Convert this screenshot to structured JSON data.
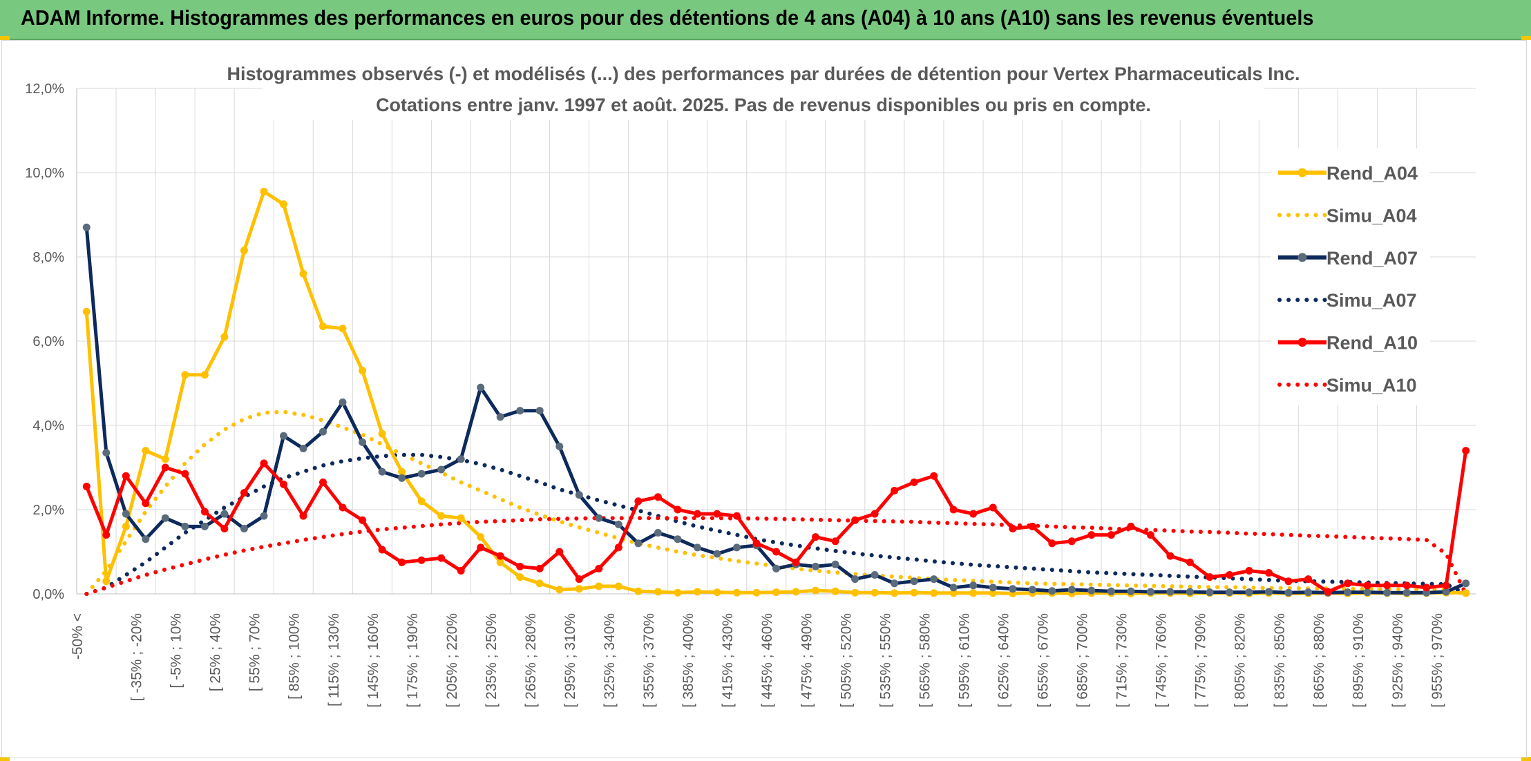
{
  "banner": {
    "title": "ADAM Informe. Histogrammes des performances en euros pour des détentions de 4 ans (A04) à 10 ans (A10) sans les revenus éventuels"
  },
  "colors": {
    "banner_bg": "#79c880",
    "a04": "#FFC000",
    "a07": "#0E2A5C",
    "a10": "#FF0000",
    "marker_a07": "#5a6b7c"
  },
  "chart_data": {
    "type": "line",
    "title": [
      "Histogrammes observés (-) et modélisés (...) des performances par durées de détention pour Vertex Pharmaceuticals Inc.",
      "Cotations entre janv. 1997 et août. 2025. Pas de revenus disponibles ou pris en compte."
    ],
    "xlabel": "",
    "ylabel": "",
    "ylim": [
      0,
      12
    ],
    "yticks": [
      "0,0%",
      "2,0%",
      "4,0%",
      "6,0%",
      "8,0%",
      "10,0%",
      "12,0%"
    ],
    "grid": true,
    "legend_position": "right",
    "x_tick_labels": [
      "-50% <",
      "[ -35% ; -20%",
      "[ -5% ; 10%",
      "[ 25% ; 40%",
      "[ 55% ; 70%",
      "[ 85% ; 100%",
      "[ 115% ; 130%",
      "[ 145% ; 160%",
      "[ 175% ; 190%",
      "[ 205% ; 220%",
      "[ 235% ; 250%",
      "[ 265% ; 280%",
      "[ 295% ; 310%",
      "[ 325% ; 340%",
      "[ 355% ; 370%",
      "[ 385% ; 400%",
      "[ 415% ; 430%",
      "[ 445% ; 460%",
      "[ 475% ; 490%",
      "[ 505% ; 520%",
      "[ 535% ; 550%",
      "[ 565% ; 580%",
      "[ 595% ; 610%",
      "[ 625% ; 640%",
      "[ 655% ; 670%",
      "[ 685% ; 700%",
      "[ 715% ; 730%",
      "[ 745% ; 760%",
      "[ 775% ; 790%",
      "[ 805% ; 820%",
      "[ 835% ; 850%",
      "[ 865% ; 880%",
      "[ 895% ; 910%",
      "[ 925% ; 940%",
      "[ 955% ; 970%"
    ],
    "series": [
      {
        "name": "Rend_A04",
        "style": "solid",
        "color": "#FFC000",
        "marker_color": "#FFC000",
        "values": [
          6.7,
          0.3,
          1.6,
          3.4,
          3.2,
          5.2,
          5.2,
          6.1,
          8.15,
          9.55,
          9.25,
          7.6,
          6.35,
          6.3,
          5.3,
          3.8,
          2.9,
          2.2,
          1.85,
          1.8,
          1.35,
          0.75,
          0.4,
          0.25,
          0.1,
          0.12,
          0.18,
          0.18,
          0.06,
          0.05,
          0.03,
          0.05,
          0.04,
          0.03,
          0.03,
          0.04,
          0.05,
          0.08,
          0.06,
          0.03,
          0.03,
          0.02,
          0.03,
          0.02,
          0.02,
          0.02,
          0.02,
          0.01,
          0.02,
          0.02,
          0.01,
          0.02,
          0.02,
          0.01,
          0.02,
          0.02,
          0.01,
          0.02,
          0.02,
          0.01,
          0.02,
          0.01,
          0.01,
          0.02,
          0.01,
          0.02,
          0.02,
          0.01,
          0.02,
          0.03,
          0.02
        ]
      },
      {
        "name": "Simu_A04",
        "style": "dotted",
        "color": "#FFC000",
        "values": [
          0.0,
          0.55,
          1.25,
          1.95,
          2.55,
          3.1,
          3.55,
          3.9,
          4.15,
          4.3,
          4.32,
          4.25,
          4.12,
          3.95,
          3.78,
          3.55,
          3.32,
          3.1,
          2.88,
          2.65,
          2.45,
          2.25,
          2.05,
          1.88,
          1.72,
          1.58,
          1.45,
          1.32,
          1.2,
          1.1,
          1.0,
          0.92,
          0.85,
          0.78,
          0.72,
          0.66,
          0.6,
          0.55,
          0.51,
          0.47,
          0.44,
          0.41,
          0.38,
          0.35,
          0.33,
          0.31,
          0.29,
          0.27,
          0.25,
          0.24,
          0.23,
          0.22,
          0.21,
          0.2,
          0.19,
          0.18,
          0.17,
          0.16,
          0.16,
          0.15,
          0.14,
          0.14,
          0.13,
          0.13,
          0.12,
          0.12,
          0.11,
          0.11,
          0.1,
          0.1,
          0.0
        ]
      },
      {
        "name": "Rend_A07",
        "style": "solid",
        "color": "#0E2A5C",
        "marker_color": "#5a6b7c",
        "values": [
          8.7,
          3.35,
          1.9,
          1.3,
          1.8,
          1.6,
          1.6,
          1.9,
          1.55,
          1.85,
          3.75,
          3.45,
          3.85,
          4.55,
          3.6,
          2.9,
          2.75,
          2.85,
          2.95,
          3.2,
          4.9,
          4.2,
          4.35,
          4.35,
          3.5,
          2.35,
          1.8,
          1.65,
          1.2,
          1.45,
          1.3,
          1.1,
          0.95,
          1.1,
          1.15,
          0.6,
          0.7,
          0.65,
          0.7,
          0.35,
          0.45,
          0.25,
          0.3,
          0.35,
          0.15,
          0.2,
          0.15,
          0.12,
          0.1,
          0.07,
          0.1,
          0.08,
          0.06,
          0.06,
          0.05,
          0.05,
          0.05,
          0.04,
          0.04,
          0.04,
          0.05,
          0.03,
          0.04,
          0.03,
          0.04,
          0.04,
          0.03,
          0.03,
          0.03,
          0.05,
          0.25
        ]
      },
      {
        "name": "Simu_A07",
        "style": "dotted",
        "color": "#0E2A5C",
        "values": [
          0.0,
          0.15,
          0.45,
          0.75,
          1.1,
          1.45,
          1.75,
          2.05,
          2.3,
          2.55,
          2.75,
          2.9,
          3.05,
          3.15,
          3.22,
          3.27,
          3.3,
          3.3,
          3.25,
          3.18,
          3.08,
          2.95,
          2.8,
          2.65,
          2.48,
          2.35,
          2.22,
          2.1,
          1.98,
          1.85,
          1.72,
          1.6,
          1.5,
          1.4,
          1.3,
          1.22,
          1.15,
          1.08,
          1.02,
          0.96,
          0.91,
          0.86,
          0.82,
          0.77,
          0.73,
          0.69,
          0.66,
          0.63,
          0.6,
          0.57,
          0.54,
          0.51,
          0.49,
          0.47,
          0.45,
          0.43,
          0.41,
          0.39,
          0.37,
          0.35,
          0.33,
          0.31,
          0.3,
          0.29,
          0.28,
          0.27,
          0.26,
          0.25,
          0.24,
          0.23,
          0.0
        ]
      },
      {
        "name": "Rend_A10",
        "style": "solid",
        "color": "#FF0000",
        "marker_color": "#FF0000",
        "values": [
          2.55,
          1.4,
          2.8,
          2.15,
          3.0,
          2.85,
          1.95,
          1.55,
          2.4,
          3.1,
          2.6,
          1.85,
          2.65,
          2.05,
          1.75,
          1.05,
          0.75,
          0.8,
          0.85,
          0.55,
          1.1,
          0.9,
          0.65,
          0.6,
          1.0,
          0.35,
          0.6,
          1.1,
          2.2,
          2.3,
          2.0,
          1.9,
          1.9,
          1.85,
          1.2,
          1.0,
          0.75,
          1.35,
          1.25,
          1.75,
          1.9,
          2.45,
          2.65,
          2.8,
          2.0,
          1.9,
          2.05,
          1.55,
          1.6,
          1.2,
          1.25,
          1.4,
          1.4,
          1.6,
          1.4,
          0.9,
          0.75,
          0.4,
          0.45,
          0.55,
          0.5,
          0.3,
          0.35,
          0.05,
          0.25,
          0.2,
          0.2,
          0.2,
          0.15,
          0.2,
          3.4
        ]
      },
      {
        "name": "Simu_A10",
        "style": "dotted",
        "color": "#FF0000",
        "values": [
          0.0,
          0.15,
          0.3,
          0.45,
          0.58,
          0.7,
          0.82,
          0.93,
          1.03,
          1.12,
          1.2,
          1.28,
          1.35,
          1.42,
          1.48,
          1.53,
          1.57,
          1.61,
          1.65,
          1.68,
          1.71,
          1.73,
          1.75,
          1.77,
          1.78,
          1.79,
          1.8,
          1.8,
          1.8,
          1.8,
          1.8,
          1.8,
          1.8,
          1.79,
          1.79,
          1.78,
          1.77,
          1.76,
          1.75,
          1.74,
          1.73,
          1.72,
          1.71,
          1.69,
          1.68,
          1.66,
          1.65,
          1.63,
          1.62,
          1.6,
          1.58,
          1.57,
          1.55,
          1.53,
          1.52,
          1.5,
          1.48,
          1.47,
          1.45,
          1.43,
          1.42,
          1.4,
          1.38,
          1.37,
          1.35,
          1.33,
          1.32,
          1.3,
          1.28,
          0.95,
          0.0
        ]
      }
    ]
  }
}
